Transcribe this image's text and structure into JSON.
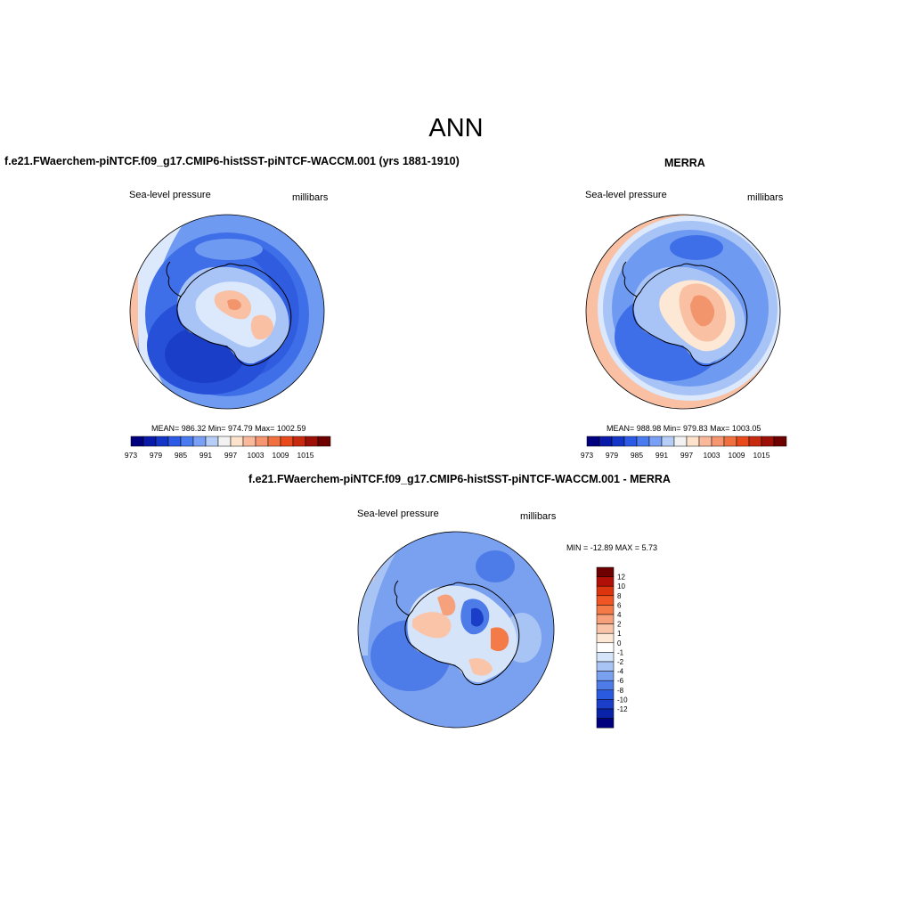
{
  "main_title": "ANN",
  "panel_left": {
    "title": "f.e21.FWaerchem-piNTCF.f09_g17.CMIP6-histSST-piNTCF-WACCM.001 (yrs 1881-1910)",
    "variable": "Sea-level pressure",
    "units": "millibars",
    "stats": "MEAN= 986.32  Min= 974.79  Max= 1002.59"
  },
  "panel_right": {
    "title": "MERRA",
    "variable": "Sea-level pressure",
    "units": "millibars",
    "stats": "MEAN= 988.98  Min= 979.83  Max= 1003.05"
  },
  "panel_diff": {
    "title": "f.e21.FWaerchem-piNTCF.f09_g17.CMIP6-histSST-piNTCF-WACCM.001 - MERRA",
    "variable": "Sea-level pressure",
    "units": "millibars",
    "stats": "MIN = -12.89 MAX =   5.73"
  },
  "colorbar_abs": {
    "colors": [
      "#00007f",
      "#0a1aa8",
      "#1336c8",
      "#2a5ae6",
      "#4a7cf0",
      "#7aa0f5",
      "#b6cdf7",
      "#f2f2f2",
      "#fde2cc",
      "#f9b99a",
      "#f59670",
      "#f07040",
      "#e84a1c",
      "#c82a10",
      "#9c1008",
      "#6e0000"
    ],
    "tick_labels": [
      "973",
      "979",
      "985",
      "991",
      "997",
      "1003",
      "1009",
      "1015"
    ]
  },
  "colorbar_diff": {
    "colors": [
      "#6e0000",
      "#b01008",
      "#dd3410",
      "#f05524",
      "#f47a48",
      "#f7a07c",
      "#f9c4a8",
      "#fde8d6",
      "#ffffff",
      "#d6e4fa",
      "#a8c4f4",
      "#7aa0f0",
      "#4d7ce8",
      "#2a5ae0",
      "#1a3ec8",
      "#0a22a8",
      "#00007f"
    ],
    "tick_labels": [
      "12",
      "10",
      "8",
      "6",
      "4",
      "2",
      "1",
      "0",
      "-1",
      "-2",
      "-4",
      "-6",
      "-8",
      "-10",
      "-12"
    ]
  },
  "map_colors": {
    "deep_blue": "#2650d8",
    "mid_blue": "#3f6fe8",
    "light_blue": "#6f9af2",
    "pale_blue": "#a8c4f6",
    "very_pale": "#dce8fb",
    "peach": "#f9c0a4",
    "salmon": "#f2956c",
    "coastline": "#000000"
  }
}
